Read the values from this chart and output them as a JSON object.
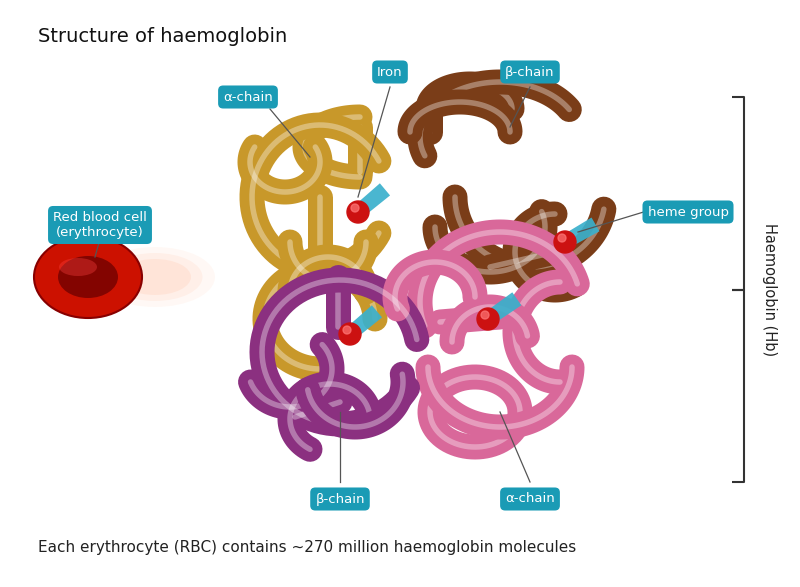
{
  "title": "Structure of haemoglobin",
  "footer": "Each erythrocyte (RBC) contains ~270 million haemoglobin molecules",
  "background_color": "#ffffff",
  "title_fontsize": 14,
  "footer_fontsize": 11,
  "label_bg_color": "#1a9bb5",
  "label_text_color": "#ffffff",
  "label_fontsize": 9.5,
  "side_label": "Haemoglobin (Hb)",
  "gold_color": "#c8982a",
  "brown_color": "#7a3d18",
  "purple_color": "#8b3080",
  "pink_color": "#d9689a",
  "iron_color": "#cc1111",
  "arrow_color": "#3ab0cc",
  "bracket_color": "#333333",
  "line_color": "#555555"
}
